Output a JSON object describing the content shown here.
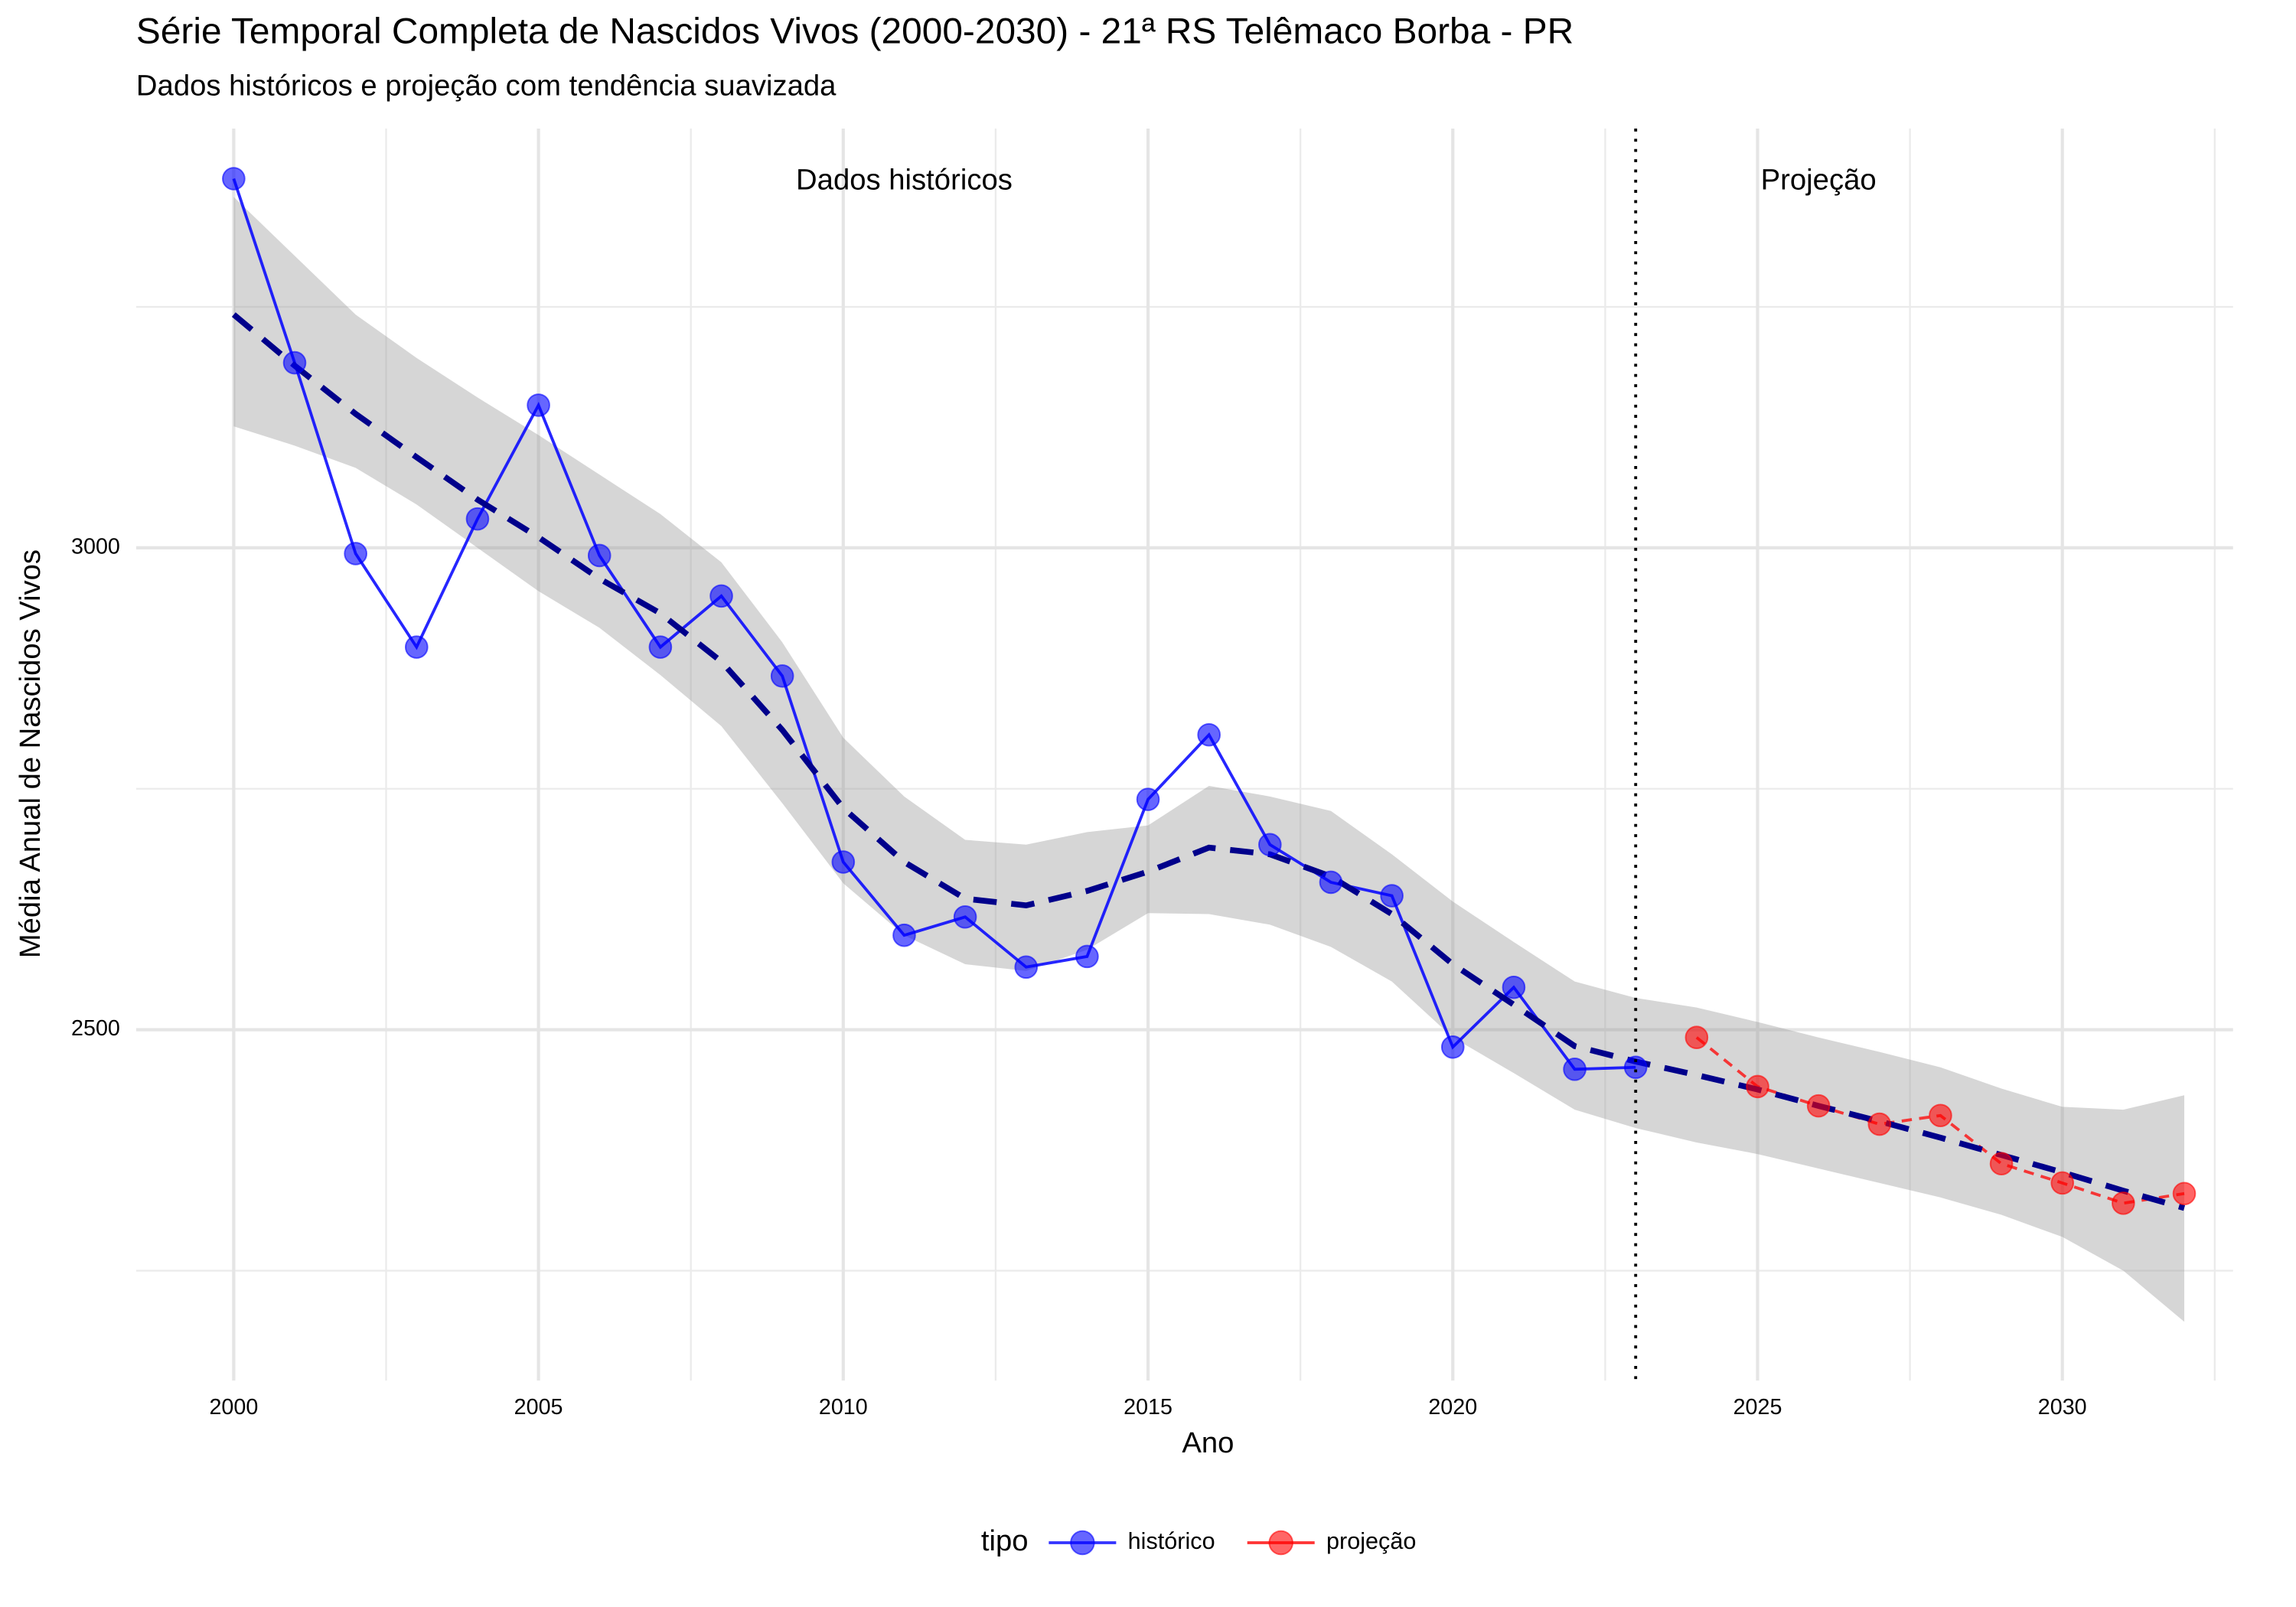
{
  "chart_data": {
    "type": "line",
    "title": "Série Temporal Completa de Nascidos Vivos (2000-2030) -  21ª RS Telêmaco Borba - PR",
    "subtitle": "Dados históricos e projeção com tendência suavizada",
    "x_label": "Ano",
    "y_label": "Média Anual de Nascidos Vivos",
    "x": [
      2000,
      2001,
      2002,
      2003,
      2004,
      2005,
      2006,
      2007,
      2008,
      2009,
      2010,
      2011,
      2012,
      2013,
      2014,
      2015,
      2016,
      2017,
      2018,
      2019,
      2020,
      2021,
      2022,
      2023,
      2024,
      2025,
      2026,
      2027,
      2028,
      2029,
      2030,
      2031,
      2032
    ],
    "series": [
      {
        "name": "histórico",
        "color": "#0000ff",
        "dashed": false,
        "values": [
          3383,
          3192,
          2994,
          2897,
          3030,
          3148,
          2992,
          2897,
          2950,
          2867,
          2674,
          2598,
          2617,
          2565,
          2576,
          2739,
          2806,
          2692,
          2653,
          2639,
          2482,
          2544,
          2459,
          2461,
          null,
          null,
          null,
          null,
          null,
          null,
          null,
          null,
          null
        ]
      },
      {
        "name": "projeção",
        "color": "#ff0000",
        "dashed": true,
        "values": [
          null,
          null,
          null,
          null,
          null,
          null,
          null,
          null,
          null,
          null,
          null,
          null,
          null,
          null,
          null,
          null,
          null,
          null,
          null,
          null,
          null,
          null,
          null,
          null,
          2492,
          2441,
          2421,
          2402,
          2411,
          2361,
          2341,
          2320,
          2330
        ]
      }
    ],
    "trend": {
      "color": "#00008b",
      "values": [
        3242,
        3189,
        3139,
        3094,
        3050,
        3011,
        2968,
        2932,
        2882,
        2811,
        2730,
        2674,
        2636,
        2629,
        2644,
        2664,
        2689,
        2682,
        2659,
        2620,
        2568,
        2526,
        2483,
        2467,
        2453,
        2438,
        2421,
        2405,
        2388,
        2370,
        2352,
        2333,
        2315
      ],
      "lower": [
        3126,
        3106,
        3083,
        3045,
        3000,
        2955,
        2917,
        2868,
        2815,
        2735,
        2652,
        2598,
        2568,
        2561,
        2583,
        2621,
        2620,
        2609,
        2586,
        2550,
        2492,
        2455,
        2417,
        2398,
        2383,
        2371,
        2356,
        2341,
        2326,
        2308,
        2285,
        2250,
        2197
      ],
      "upper": [
        3364,
        3303,
        3242,
        3197,
        3156,
        3117,
        3076,
        3035,
        2985,
        2902,
        2803,
        2742,
        2697,
        2692,
        2705,
        2712,
        2753,
        2742,
        2727,
        2682,
        2633,
        2591,
        2550,
        2533,
        2523,
        2508,
        2492,
        2477,
        2461,
        2439,
        2420,
        2417,
        2432
      ]
    },
    "vline": 2023,
    "annotations": [
      {
        "text": "Dados históricos",
        "x": 2011,
        "y": 3380,
        "color": "#0000ff"
      },
      {
        "text": "Projeção",
        "x": 2026,
        "y": 3380,
        "color": "#ff0000"
      }
    ],
    "xlim": [
      1998.4,
      2032.8
    ],
    "ylim": [
      2136,
      3435
    ],
    "xticks": [
      2000,
      2005,
      2010,
      2015,
      2020,
      2025,
      2030
    ],
    "yticks": [
      2500,
      3000
    ],
    "grid": true,
    "legend_title": "tipo",
    "legend_position": "bottom"
  }
}
